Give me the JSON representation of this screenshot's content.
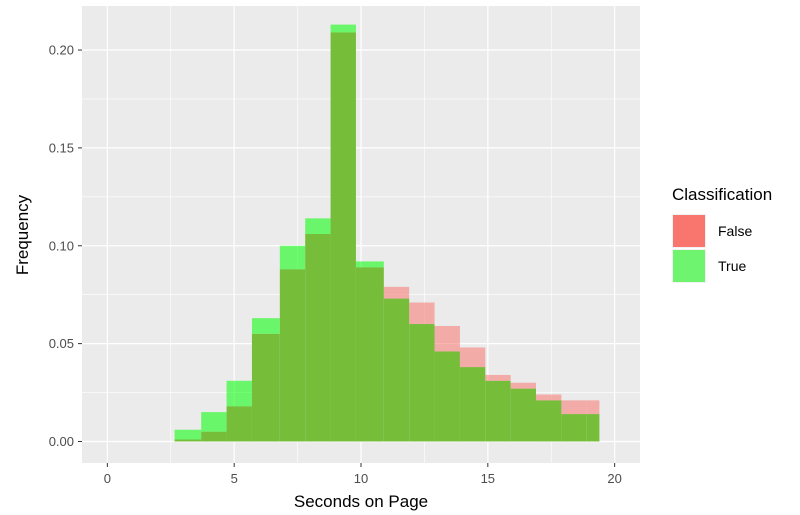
{
  "chart_data": {
    "type": "histogram",
    "title": "",
    "xlabel": "Seconds on Page",
    "ylabel": "Frequency",
    "xlim": [
      -1,
      21
    ],
    "ylim": [
      -0.011,
      0.2225
    ],
    "x_ticks": [
      0,
      5,
      10,
      15,
      20
    ],
    "y_ticks": [
      0.0,
      0.05,
      0.1,
      0.15,
      0.2
    ],
    "x_tick_labels": [
      "0",
      "5",
      "10",
      "15",
      "20"
    ],
    "y_tick_labels": [
      "0.00",
      "0.05",
      "0.10",
      "0.15",
      "0.20"
    ],
    "bin_edges": [
      2.65,
      3.7,
      4.7,
      5.7,
      6.8,
      7.8,
      8.8,
      9.8,
      10.9,
      11.9,
      12.9,
      13.9,
      14.9,
      15.9,
      16.9,
      17.9,
      18.9,
      19.4
    ],
    "series": [
      {
        "name": "False",
        "color": "#F8766D",
        "values": [
          0.001,
          0.005,
          0.018,
          0.055,
          0.088,
          0.106,
          0.209,
          0.089,
          0.079,
          0.071,
          0.059,
          0.048,
          0.034,
          0.03,
          0.024,
          0.021,
          0.021
        ]
      },
      {
        "name": "True",
        "color": "#00FF00",
        "values": [
          0.006,
          0.015,
          0.031,
          0.063,
          0.1,
          0.114,
          0.213,
          0.092,
          0.073,
          0.06,
          0.046,
          0.038,
          0.031,
          0.027,
          0.021,
          0.014,
          0.014
        ]
      }
    ],
    "overlap_color": "#76BD3A",
    "panel_background": "#EBEBEB",
    "grid": true,
    "legend": {
      "title": "Classification",
      "position": "right",
      "items": [
        "False",
        "True"
      ]
    }
  }
}
